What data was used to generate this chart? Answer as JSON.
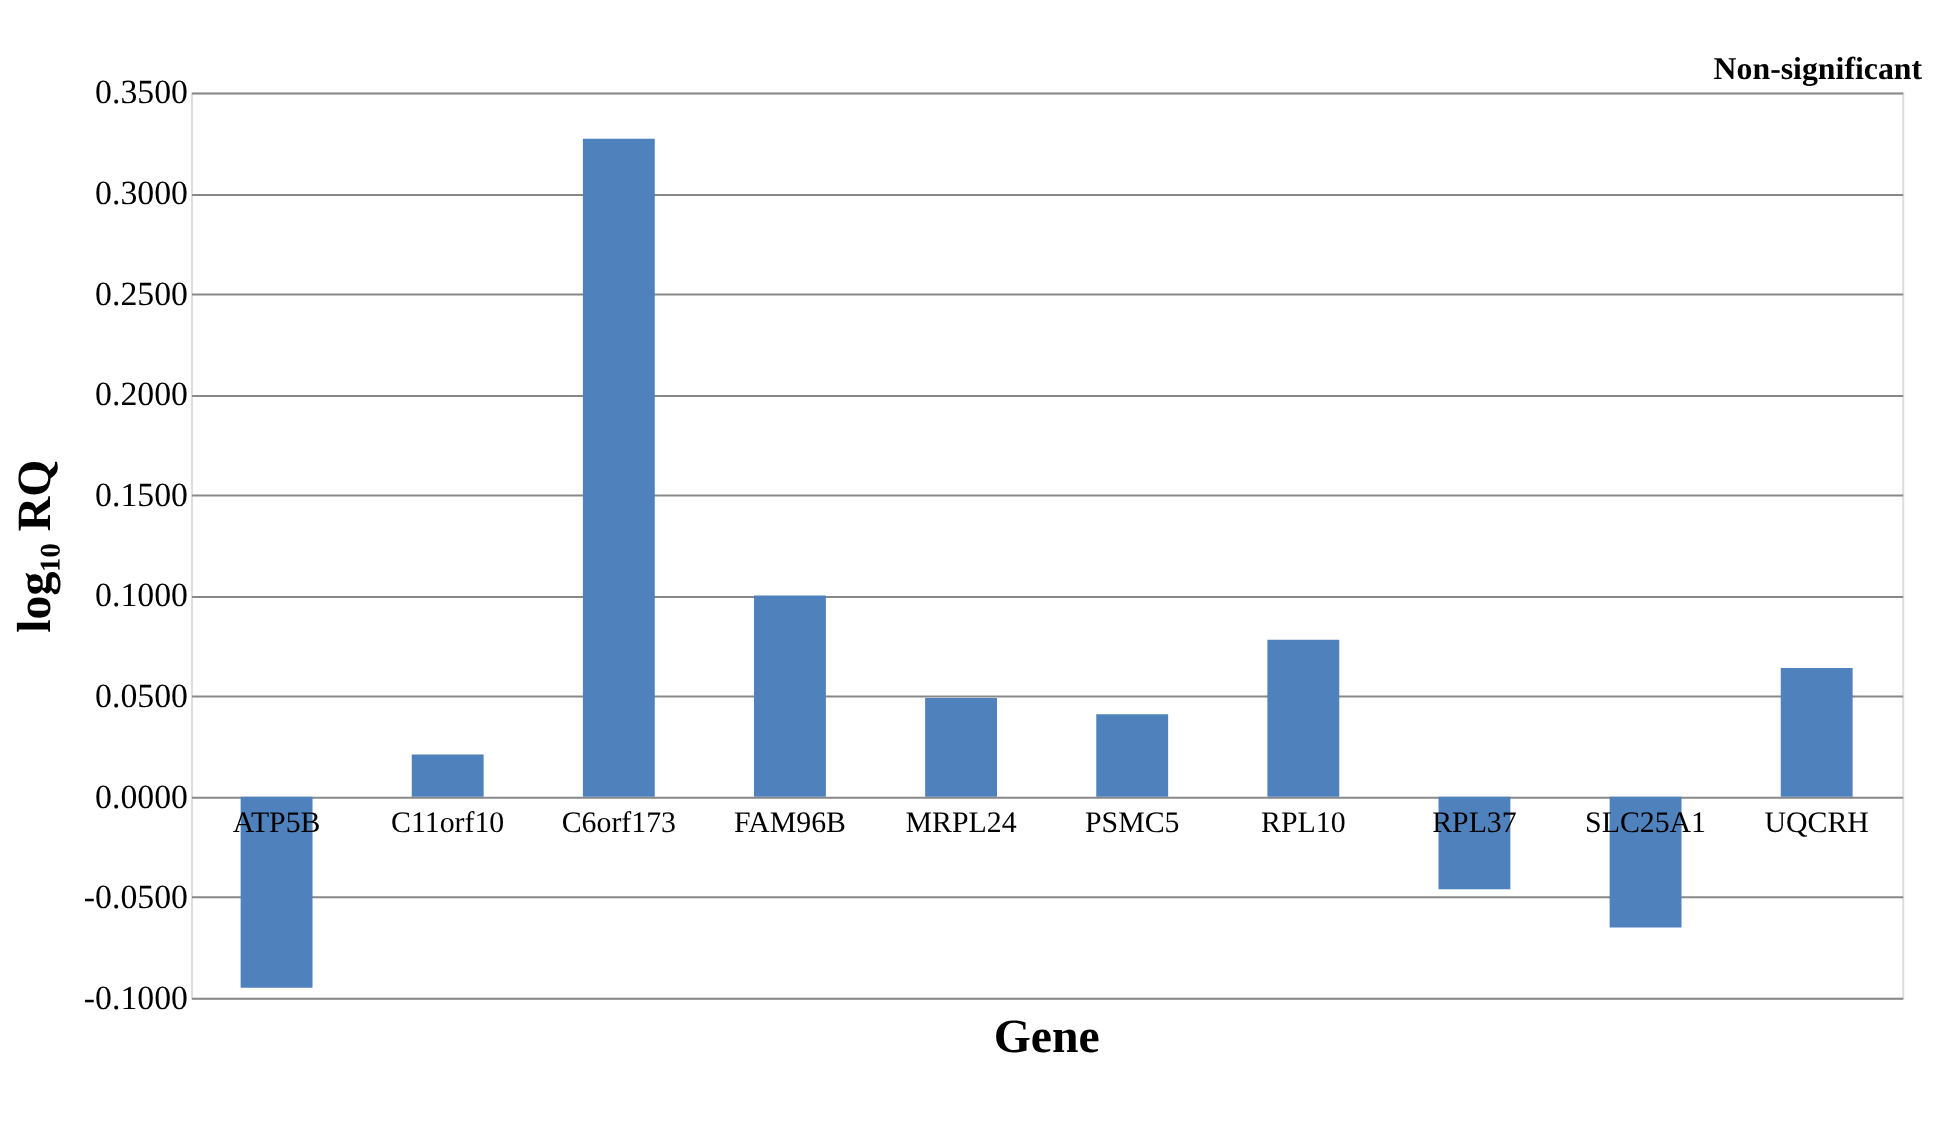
{
  "chart_data": {
    "type": "bar",
    "categories": [
      "ATP5B",
      "C11orf10",
      "C6orf173",
      "FAM96B",
      "MRPL24",
      "PSMC5",
      "RPL10",
      "RPL37",
      "SLC25A1",
      "UQCRH"
    ],
    "series": [
      {
        "color": "#4f81bd",
        "values": [
          -0.095,
          0.021,
          0.327,
          0.1,
          0.049,
          0.041,
          0.078,
          -0.046,
          -0.065,
          0.064
        ]
      }
    ],
    "xlabel": "Gene",
    "ylabel": "log₁₀ RQ",
    "annotations": [
      "Non-significant"
    ],
    "ylim": [
      -0.1,
      0.35
    ],
    "yticks": [
      {
        "value": -0.1,
        "label": "-0.1000"
      },
      {
        "value": -0.05,
        "label": "-0.0500"
      },
      {
        "value": 0,
        "label": "0.0000"
      },
      {
        "value": 0.05,
        "label": "0.0500"
      },
      {
        "value": 0.1,
        "label": "0.1000"
      },
      {
        "value": 0.15,
        "label": "0.1500"
      },
      {
        "value": 0.2,
        "label": "0.2000"
      },
      {
        "value": 0.25,
        "label": "0.2500"
      },
      {
        "value": 0.3,
        "label": "0.3000"
      },
      {
        "value": 0.35,
        "label": "0.3500"
      }
    ],
    "grid": "y"
  }
}
